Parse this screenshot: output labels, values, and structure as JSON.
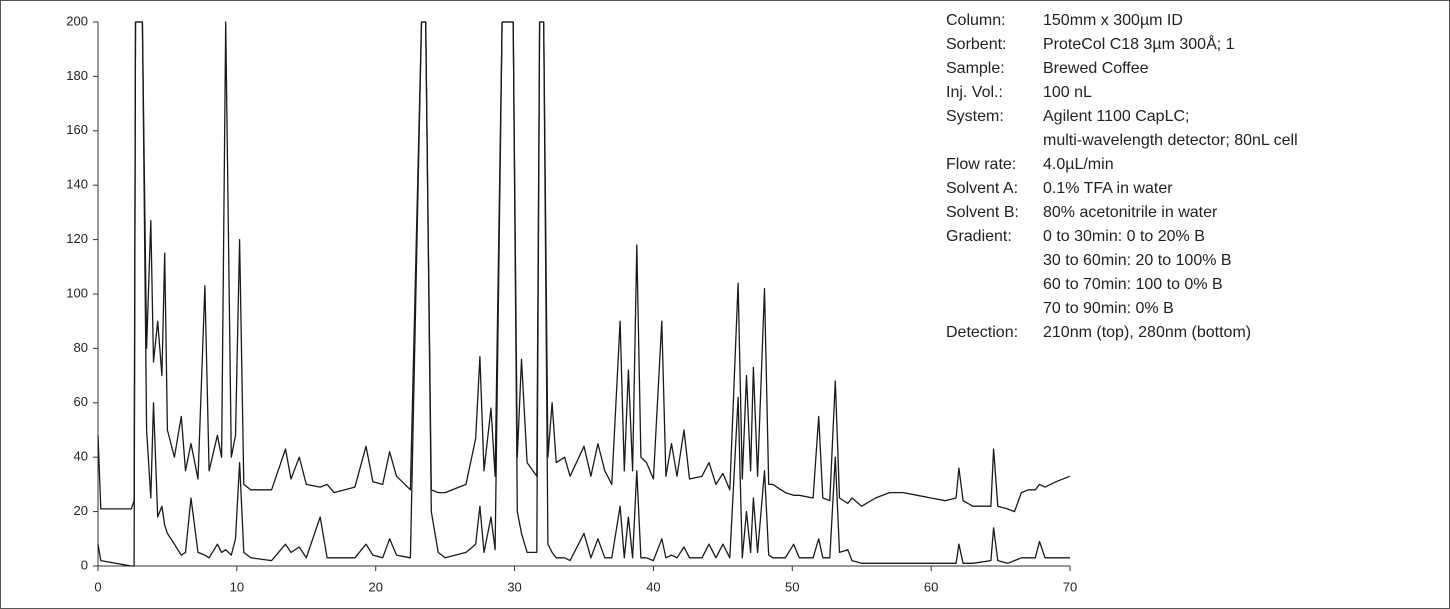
{
  "chart_data": {
    "type": "line",
    "x": [
      0,
      0.2,
      2.4,
      2.6,
      2.7,
      2.9,
      3.0,
      3.2,
      3.5,
      3.8,
      4.0,
      4.3,
      4.6,
      4.8,
      5.0,
      5.5,
      6.0,
      6.3,
      6.7,
      7.2,
      7.7,
      8.0,
      8.6,
      8.9,
      9.2,
      9.6,
      9.9,
      10.2,
      10.5,
      11,
      12.5,
      13.5,
      13.9,
      14.5,
      15,
      16,
      16.5,
      17,
      18.5,
      19.3,
      19.8,
      20.5,
      21,
      21.5,
      22.5,
      23.3,
      23.6,
      24.0,
      24.5,
      25,
      26.5,
      27.2,
      27.5,
      27.8,
      28.3,
      28.6,
      29.1,
      29.9,
      30.2,
      30.5,
      30.9,
      31.6,
      31.8,
      32.1,
      32.4,
      32.7,
      33,
      33.6,
      34,
      35,
      35.5,
      36,
      36.5,
      37,
      37.6,
      37.9,
      38.2,
      38.5,
      38.8,
      39.1,
      39.5,
      40,
      40.6,
      40.9,
      41.3,
      41.7,
      42.2,
      42.6,
      43.5,
      44,
      44.5,
      45,
      45.5,
      46.1,
      46.4,
      46.7,
      47.0,
      47.2,
      47.5,
      48.0,
      48.3,
      48.6,
      49.5,
      50.1,
      50.5,
      51.5,
      51.9,
      52.2,
      52.7,
      53.1,
      53.4,
      54,
      54.3,
      55,
      56,
      57,
      58,
      59,
      60,
      61,
      61.8,
      62.0,
      62.3,
      63,
      64.3,
      64.5,
      64.8,
      65.5,
      66,
      66.5,
      67,
      67.5,
      67.8,
      68.2,
      69,
      70
    ],
    "series": [
      {
        "color": "#1a1a1a",
        "values": [
          48,
          21,
          21,
          24,
          200,
          200,
          200,
          200,
          80,
          127,
          75,
          90,
          70,
          115,
          50,
          40,
          55,
          35,
          45,
          32,
          103,
          35,
          48,
          40,
          200,
          40,
          48,
          120,
          30,
          28,
          28,
          43,
          32,
          40,
          30,
          29,
          30,
          27,
          29,
          44,
          31,
          30,
          42,
          33,
          28,
          200,
          200,
          28,
          27,
          27,
          30,
          47,
          77,
          35,
          58,
          33,
          200,
          200,
          40,
          76,
          38,
          33,
          200,
          200,
          40,
          60,
          38,
          40,
          33,
          44,
          33,
          45,
          35,
          30,
          90,
          35,
          72,
          35,
          118,
          40,
          38,
          32,
          90,
          33,
          45,
          33,
          50,
          32,
          33,
          38,
          30,
          34,
          28,
          104,
          32,
          70,
          35,
          73,
          33,
          102,
          30,
          30,
          27,
          26,
          26,
          25,
          55,
          25,
          24,
          68,
          25,
          23,
          25,
          22,
          25,
          27,
          27,
          26,
          25,
          24,
          25,
          36,
          24,
          22,
          22,
          43,
          22,
          21,
          20,
          27,
          28,
          28,
          30,
          29,
          31,
          33
        ]
      },
      {
        "color": "#1a1a1a",
        "values": [
          8,
          2,
          0,
          0,
          200,
          200,
          200,
          200,
          50,
          25,
          60,
          18,
          22,
          15,
          12,
          8,
          4,
          5,
          25,
          5,
          4,
          3,
          8,
          5,
          6,
          4,
          10,
          38,
          5,
          3,
          2,
          8,
          5,
          7,
          3,
          18,
          3,
          3,
          3,
          8,
          4,
          3,
          10,
          4,
          3,
          200,
          200,
          20,
          5,
          3,
          5,
          8,
          22,
          5,
          18,
          6,
          200,
          200,
          20,
          12,
          5,
          5,
          200,
          200,
          8,
          5,
          3,
          3,
          2,
          12,
          3,
          10,
          3,
          3,
          22,
          3,
          18,
          3,
          35,
          3,
          3,
          2,
          10,
          3,
          4,
          3,
          7,
          3,
          3,
          8,
          3,
          8,
          3,
          62,
          3,
          20,
          5,
          25,
          5,
          35,
          4,
          3,
          3,
          8,
          3,
          3,
          10,
          3,
          3,
          40,
          5,
          6,
          2,
          1,
          1,
          1,
          1,
          1,
          1,
          1,
          1,
          8,
          1,
          1,
          2,
          14,
          2,
          1,
          2,
          3,
          3,
          3,
          9,
          3,
          3,
          3
        ]
      }
    ],
    "xlim": [
      0,
      70
    ],
    "xticks": [
      0,
      10,
      20,
      30,
      40,
      50,
      60,
      70
    ],
    "ylim": [
      0,
      200
    ],
    "yticks": [
      0,
      20,
      40,
      60,
      80,
      100,
      120,
      140,
      160,
      180,
      200
    ],
    "notes": [
      {
        "label": "Column:",
        "lines": [
          "150mm x 300µm ID"
        ]
      },
      {
        "label": "Sorbent:",
        "lines": [
          "ProteCol C18 3µm 300Å; 1"
        ]
      },
      {
        "label": "Sample:",
        "lines": [
          "Brewed Coffee"
        ]
      },
      {
        "label": "Inj. Vol.:",
        "lines": [
          "100 nL"
        ]
      },
      {
        "label": "System:",
        "lines": [
          "Agilent 1100 CapLC;",
          "multi-wavelength detector; 80nL cell"
        ]
      },
      {
        "label": "Flow rate:",
        "lines": [
          "4.0µL/min"
        ]
      },
      {
        "label": "Solvent A:",
        "lines": [
          "0.1% TFA in water"
        ]
      },
      {
        "label": "Solvent B:",
        "lines": [
          "80% acetonitrile in water"
        ]
      },
      {
        "label": "Gradient:",
        "lines": [
          "0 to 30min: 0 to 20% B",
          "30 to 60min: 20 to 100% B",
          "60 to 70min: 100 to 0% B",
          "70 to 90min: 0% B"
        ]
      },
      {
        "label": "Detection:",
        "lines": [
          "210nm (top), 280nm (bottom)"
        ]
      }
    ]
  }
}
